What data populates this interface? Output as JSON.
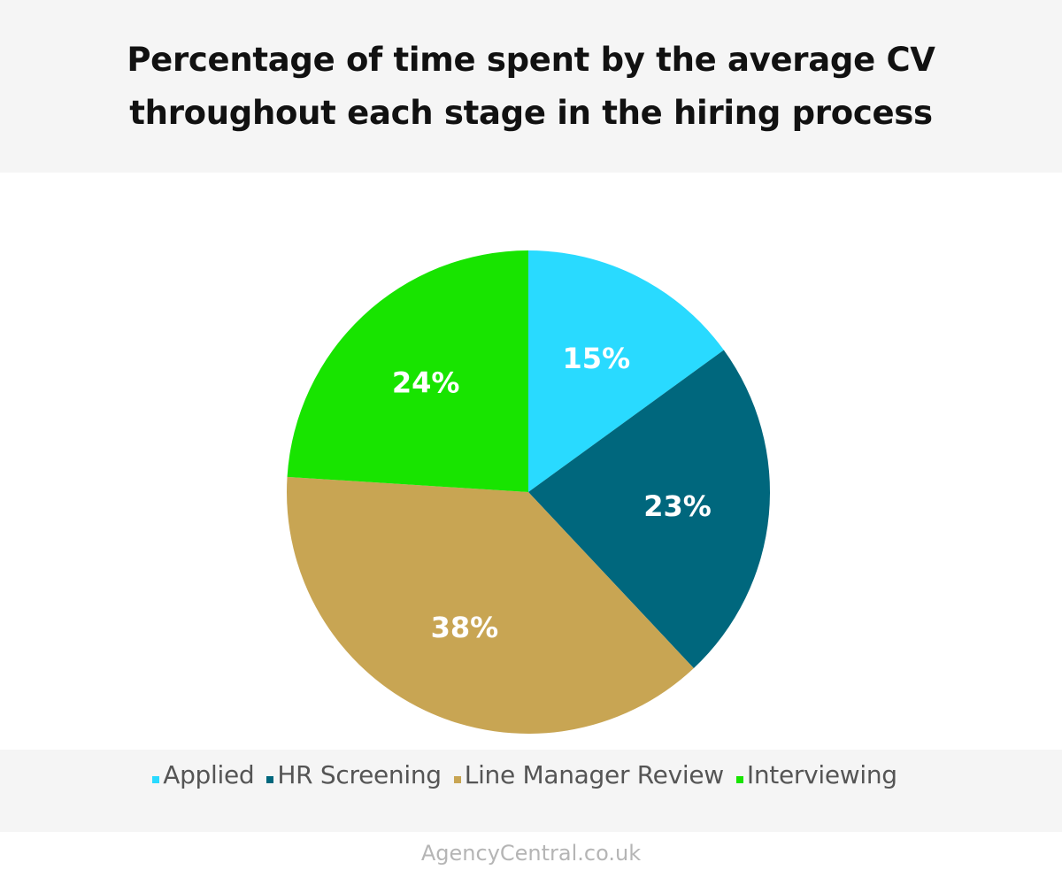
{
  "chart_data": {
    "type": "pie",
    "title": "Percentage of time spent by the average CV throughout each stage in the hiring process",
    "categories": [
      "Applied",
      "HR Screening",
      "Line Manager Review",
      "Interviewing"
    ],
    "values": [
      15,
      23,
      38,
      24
    ],
    "data_labels": [
      "15%",
      "23%",
      "38%",
      "24%"
    ],
    "colors": [
      "#29daff",
      "#00677d",
      "#c8a553",
      "#18e400"
    ],
    "start_angle": "12 o'clock",
    "direction": "clockwise",
    "legend": "bottom"
  },
  "footer": {
    "source": "AgencyCentral.co.uk"
  }
}
